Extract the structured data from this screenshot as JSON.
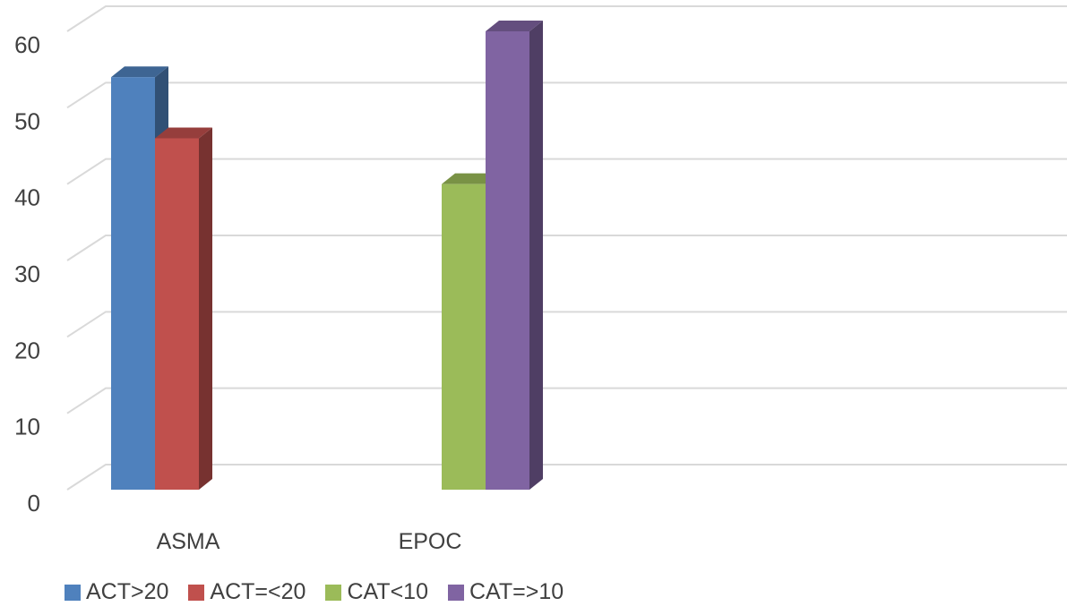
{
  "chart_data": {
    "type": "bar",
    "style": "3d-clustered-column",
    "categories": [
      "ASMA",
      "EPOC"
    ],
    "series": [
      {
        "name": "ACT>20",
        "color": "#4F81BD",
        "values": [
          54,
          null
        ]
      },
      {
        "name": "ACT=<20",
        "color": "#C0504D",
        "values": [
          46,
          null
        ]
      },
      {
        "name": "CAT<10",
        "color": "#9BBB59",
        "values": [
          null,
          40
        ]
      },
      {
        "name": "CAT=>10",
        "color": "#8064A2",
        "values": [
          null,
          60
        ]
      }
    ],
    "ylim": [
      0,
      60
    ],
    "yticks": [
      "0",
      "10",
      "20",
      "30",
      "40",
      "50",
      "60"
    ],
    "grid": true,
    "legend": "bottom"
  }
}
